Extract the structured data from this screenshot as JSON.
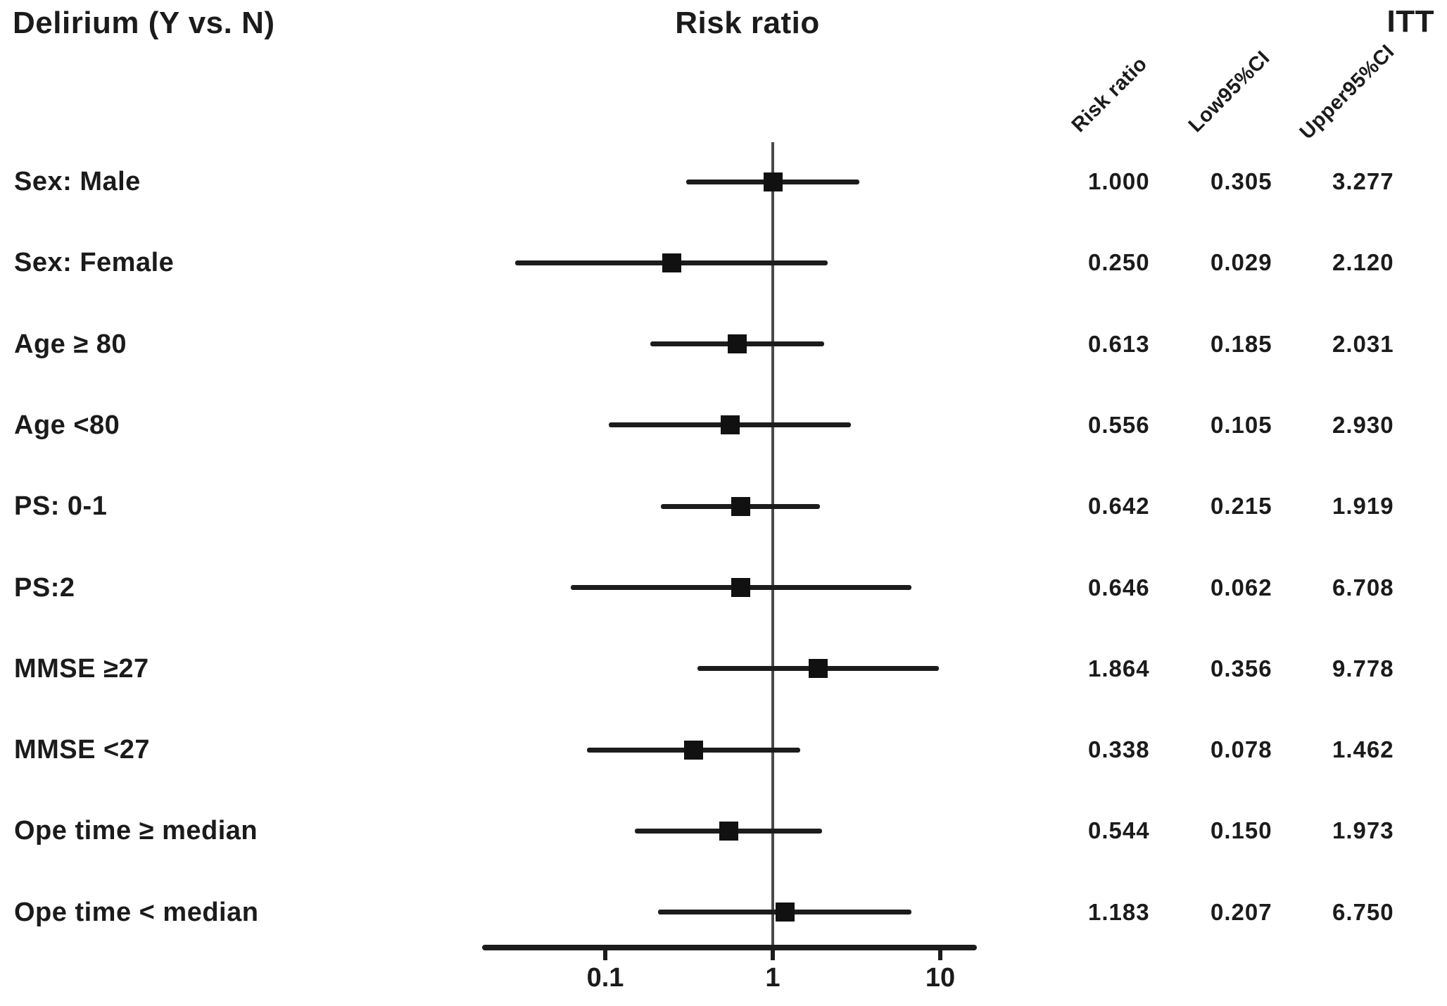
{
  "titles": {
    "left": "Delirium (Y vs. N)",
    "center": "Risk ratio",
    "right": "ITT"
  },
  "table_headers": [
    {
      "id": "risk_ratio",
      "label": "Risk ratio"
    },
    {
      "id": "low_ci",
      "label": "Low95%CI"
    },
    {
      "id": "upper_ci",
      "label": "Upper95%CI"
    }
  ],
  "chart_data": {
    "type": "forest",
    "scale": "log",
    "x_axis": {
      "ticks": [
        0.1,
        1,
        10
      ],
      "tick_labels": [
        "0.1",
        "1",
        "10"
      ],
      "reference_value": 1,
      "range": [
        0.018,
        16.5
      ],
      "grid": false
    },
    "value_format": "3dp",
    "rows": [
      {
        "label": "Sex: Male",
        "risk_ratio": 1.0,
        "low95": 0.305,
        "upper95": 3.277
      },
      {
        "label": "Sex: Female",
        "risk_ratio": 0.25,
        "low95": 0.029,
        "upper95": 2.12
      },
      {
        "label": "Age ≥ 80",
        "risk_ratio": 0.613,
        "low95": 0.185,
        "upper95": 2.031
      },
      {
        "label": "Age <80",
        "risk_ratio": 0.556,
        "low95": 0.105,
        "upper95": 2.93
      },
      {
        "label": "PS: 0-1",
        "risk_ratio": 0.642,
        "low95": 0.215,
        "upper95": 1.919
      },
      {
        "label": "PS:2",
        "risk_ratio": 0.646,
        "low95": 0.062,
        "upper95": 6.708
      },
      {
        "label": "MMSE ≥27",
        "risk_ratio": 1.864,
        "low95": 0.356,
        "upper95": 9.778
      },
      {
        "label": "MMSE <27",
        "risk_ratio": 0.338,
        "low95": 0.078,
        "upper95": 1.462
      },
      {
        "label": "Ope time ≥ median",
        "risk_ratio": 0.544,
        "low95": 0.15,
        "upper95": 1.973
      },
      {
        "label": "Ope time < median",
        "ris_note": "",
        "risk_ratio": 1.183,
        "low95": 0.207,
        "upper95": 6.75
      }
    ]
  },
  "colors": {
    "text": "#1b1b1b",
    "ci_line": "#1c1c1c",
    "marker": "#111111",
    "axis": "#1c1c1c",
    "reference_line": "#4a4a4a"
  }
}
